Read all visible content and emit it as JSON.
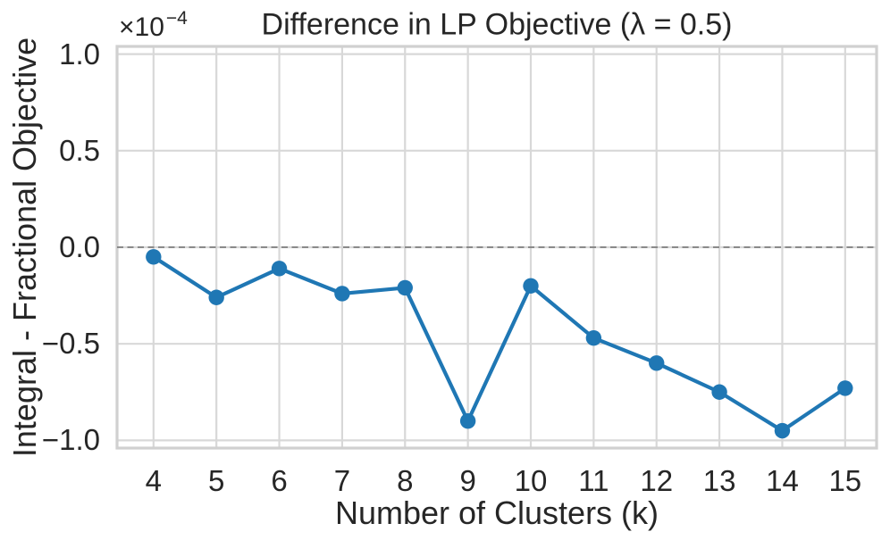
{
  "figure": {
    "background": "#ffffff",
    "text_color": "#262626"
  },
  "chart_data": {
    "type": "line",
    "title": "Difference in LP Objective (λ = 0.5)",
    "xlabel": "Number of Clusters (k)",
    "ylabel": "Integral - Fractional Objective",
    "y_multiplier": {
      "base": "×10",
      "exponent": "−4"
    },
    "units": "values are in multiples of 1e-4",
    "x": [
      4,
      5,
      6,
      7,
      8,
      9,
      10,
      11,
      12,
      13,
      14,
      15
    ],
    "values": [
      -0.05,
      -0.26,
      -0.11,
      -0.24,
      -0.21,
      -0.9,
      -0.2,
      -0.47,
      -0.6,
      -0.75,
      -0.95,
      -0.73
    ],
    "xlim": [
      3.42,
      15.5
    ],
    "ylim": [
      -1.04,
      1.04
    ],
    "xticks": [
      {
        "v": 4,
        "label": "4"
      },
      {
        "v": 5,
        "label": "5"
      },
      {
        "v": 6,
        "label": "6"
      },
      {
        "v": 7,
        "label": "7"
      },
      {
        "v": 8,
        "label": "8"
      },
      {
        "v": 9,
        "label": "9"
      },
      {
        "v": 10,
        "label": "10"
      },
      {
        "v": 11,
        "label": "11"
      },
      {
        "v": 12,
        "label": "12"
      },
      {
        "v": 13,
        "label": "13"
      },
      {
        "v": 14,
        "label": "14"
      },
      {
        "v": 15,
        "label": "15"
      }
    ],
    "yticks": [
      {
        "v": 1.0,
        "label": "1.0"
      },
      {
        "v": 0.5,
        "label": "0.5"
      },
      {
        "v": 0.0,
        "label": "0.0"
      },
      {
        "v": -0.5,
        "label": "−0.5"
      },
      {
        "v": -1.0,
        "label": "−1.0"
      }
    ],
    "grid": true,
    "legend": null,
    "zero_line": {
      "y": 0,
      "style": "dashed",
      "color": "#7f7f7f"
    },
    "line_color": "#1f77b4",
    "marker": "circle",
    "grid_color": "#d8d8d8",
    "spine_color": "#d0d0d0"
  }
}
